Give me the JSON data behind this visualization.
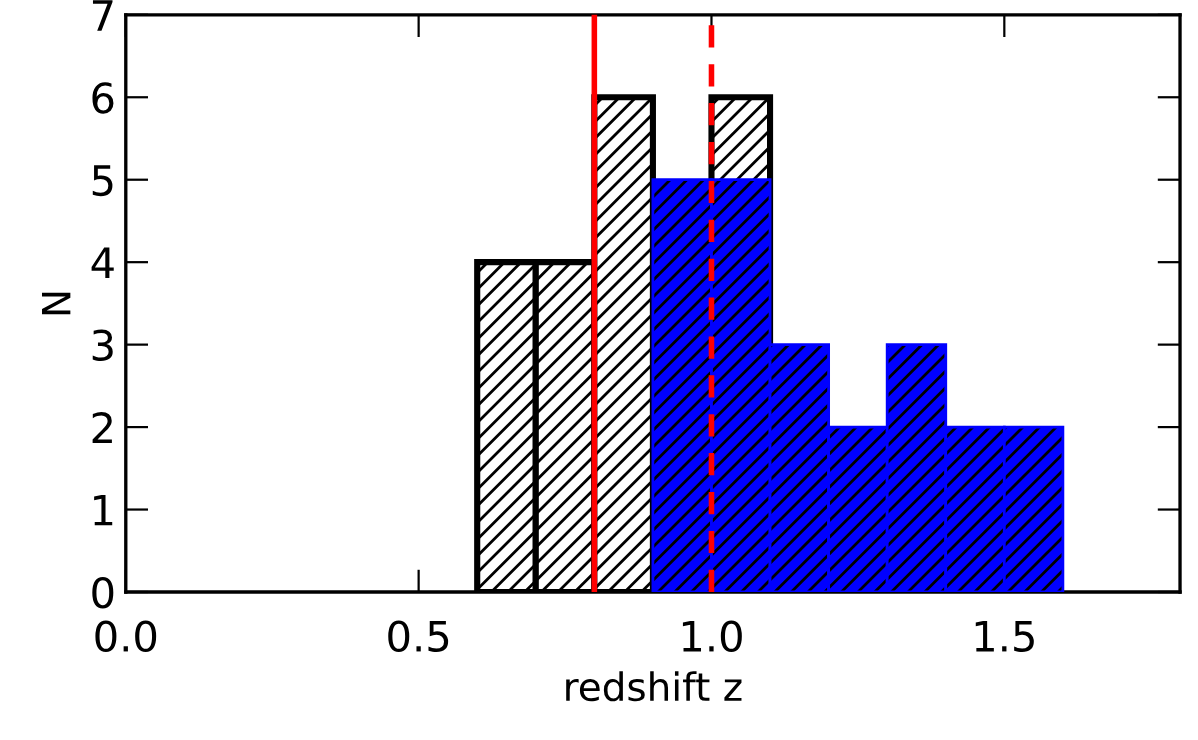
{
  "chart_data": {
    "type": "histogram",
    "xlabel": "redshift z",
    "ylabel": "N",
    "bins": [
      0.6,
      0.7,
      0.8,
      0.9,
      1.0,
      1.1,
      1.2,
      1.3,
      1.4,
      1.5,
      1.6
    ],
    "series": [
      {
        "color": "#000000",
        "values": [
          4,
          4,
          6,
          null,
          6,
          null,
          null,
          null,
          null,
          null
        ]
      },
      {
        "color": "#0000ff",
        "values": [
          0,
          0,
          0,
          5,
          5,
          3,
          2,
          3,
          2,
          2
        ]
      }
    ],
    "xlim": [
      0,
      1.8
    ],
    "xticks": [
      {
        "value": 0,
        "label": "0.0"
      },
      0.5,
      {
        "value": 1,
        "label": "1.0"
      },
      1.5
    ],
    "ylim": [
      0,
      7
    ],
    "yticks": [
      0,
      1,
      2,
      3,
      4,
      5,
      6,
      7
    ],
    "ref_lines": [
      {
        "axis": "x",
        "value": 0.8,
        "color": "#ff0000",
        "line_style": "solid"
      },
      {
        "axis": "x",
        "value": 1.0,
        "color": "#ff0000",
        "line_style": "dashed"
      }
    ],
    "grid": false
  }
}
